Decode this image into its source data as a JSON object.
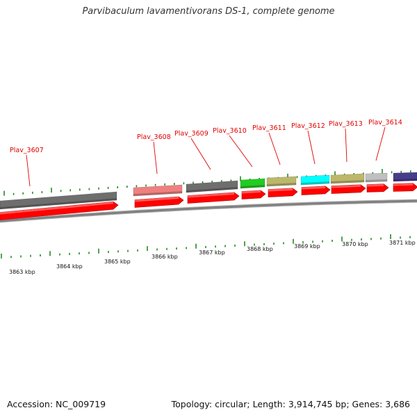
{
  "title": "Parvibaculum lavamentivorans DS-1, complete genome",
  "footer": {
    "accession": "Accession: NC_009719",
    "summary": "Topology: circular; Length: 3,914,745 bp; Genes: 3,686"
  },
  "genes": [
    {
      "name": "Plav_3607",
      "color": "#6e6e6e"
    },
    {
      "name": "Plav_3608",
      "color": "#f08080"
    },
    {
      "name": "Plav_3609",
      "color": "#6e6e6e"
    },
    {
      "name": "Plav_3610",
      "color": "#22cc22"
    },
    {
      "name": "Plav_3611",
      "color": "#bdb76b"
    },
    {
      "name": "Plav_3612",
      "color": "#00ffff"
    },
    {
      "name": "Plav_3613",
      "color": "#bdb76b"
    },
    {
      "name": "Plav_3614",
      "color": "#c0c0c0"
    },
    {
      "name": "",
      "color": "#483d8b"
    }
  ],
  "kbp_labels": [
    "3863 kbp",
    "3864 kbp",
    "3865 kbp",
    "3866 kbp",
    "3867 kbp",
    "3868 kbp",
    "3869 kbp",
    "3870 kbp",
    "3871 kbp"
  ],
  "colors": {
    "cds": "#ff0000",
    "backbone": "#808080",
    "tick": "#228b22",
    "label": "#e00000"
  }
}
